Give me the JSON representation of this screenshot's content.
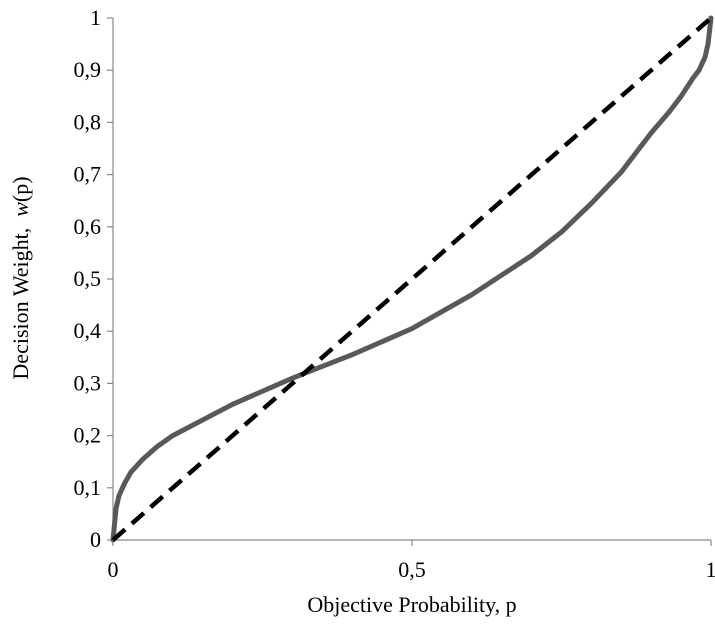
{
  "chart_data": {
    "type": "line",
    "xlabel": "Objective Probability, p",
    "ylabel": {
      "prefix": "Decision Weight,  ",
      "italic": "w",
      "suffix": "(p)"
    },
    "xlim": [
      0,
      1
    ],
    "ylim": [
      0,
      1
    ],
    "x_ticks": [
      {
        "value": 0,
        "label": "0"
      },
      {
        "value": 0.5,
        "label": "0,5"
      },
      {
        "value": 1,
        "label": "1"
      }
    ],
    "y_ticks": [
      {
        "value": 0,
        "label": "0"
      },
      {
        "value": 0.1,
        "label": "0,1"
      },
      {
        "value": 0.2,
        "label": "0,2"
      },
      {
        "value": 0.3,
        "label": "0,3"
      },
      {
        "value": 0.4,
        "label": "0,4"
      },
      {
        "value": 0.5,
        "label": "0,5"
      },
      {
        "value": 0.6,
        "label": "0,6"
      },
      {
        "value": 0.7,
        "label": "0,7"
      },
      {
        "value": 0.8,
        "label": "0,8"
      },
      {
        "value": 0.9,
        "label": "0,9"
      },
      {
        "value": 1,
        "label": "1"
      }
    ],
    "grid": false,
    "legend": "none",
    "series": [
      {
        "style": "solid",
        "color": "#595959",
        "x": [
          0,
          0.005,
          0.01,
          0.02,
          0.03,
          0.05,
          0.075,
          0.1,
          0.15,
          0.2,
          0.25,
          0.3,
          0.333,
          0.4,
          0.5,
          0.6,
          0.7,
          0.75,
          0.8,
          0.85,
          0.9,
          0.93,
          0.95,
          0.97,
          0.98,
          0.99,
          0.995,
          1
        ],
        "y": [
          0,
          0.06,
          0.085,
          0.11,
          0.13,
          0.155,
          0.18,
          0.2,
          0.23,
          0.26,
          0.285,
          0.31,
          0.325,
          0.355,
          0.405,
          0.47,
          0.545,
          0.59,
          0.645,
          0.705,
          0.78,
          0.82,
          0.85,
          0.885,
          0.9,
          0.925,
          0.95,
          1
        ]
      },
      {
        "style": "dashed",
        "color": "#000000",
        "x": [
          0,
          1
        ],
        "y": [
          0,
          1
        ]
      }
    ]
  }
}
